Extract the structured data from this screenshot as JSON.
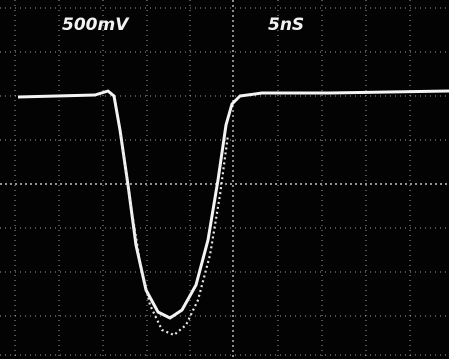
{
  "labels": {
    "voltage": "500mV",
    "time": "5nS"
  }
}
